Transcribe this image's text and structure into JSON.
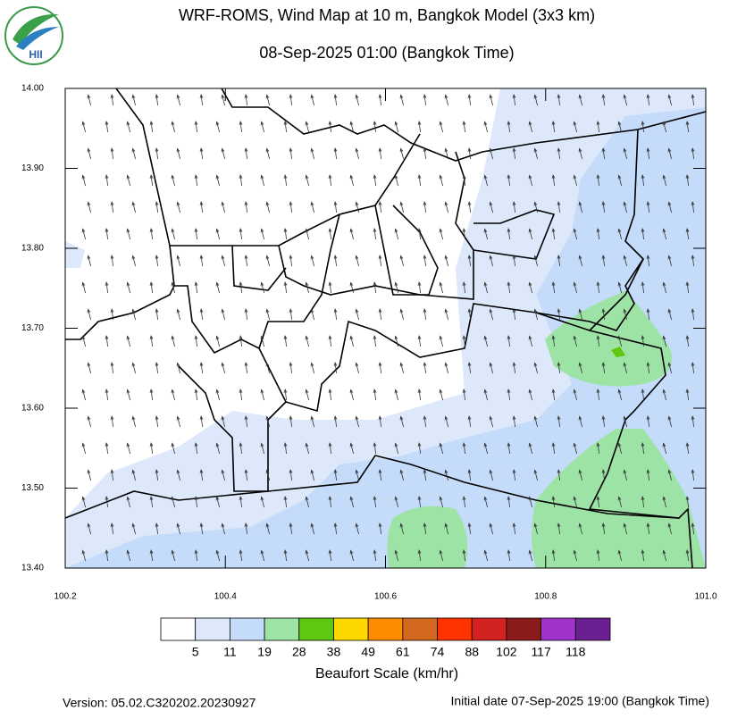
{
  "logo": {
    "text": "HII"
  },
  "map": {
    "title": "WRF-ROMS, Wind Map at 10 m, Bangkok Model (3x3 km)",
    "subtitle": "08-Sep-2025 01:00 (Bangkok Time)",
    "xlim": [
      100.2,
      101.0
    ],
    "ylim": [
      13.4,
      14.0
    ],
    "xticks": [
      100.2,
      100.4,
      100.6,
      100.8,
      {
        "value": 101,
        "label": "101.0"
      }
    ],
    "yticks": [
      {
        "value": 13.4,
        "label": "13.40"
      },
      {
        "value": 13.5,
        "label": "13.50"
      },
      {
        "value": 13.6,
        "label": "13.60"
      },
      {
        "value": 13.7,
        "label": "13.70"
      },
      {
        "value": 13.8,
        "label": "13.80"
      },
      {
        "value": 13.9,
        "label": "13.90"
      },
      {
        "value": 14,
        "label": "14.00"
      }
    ]
  },
  "colorbar": {
    "title": "Beaufort Scale (km/hr)",
    "labels": [
      5,
      11,
      19,
      28,
      38,
      49,
      61,
      74,
      88,
      102,
      117,
      118
    ],
    "colors": [
      "#ffffff",
      "#dde9fb",
      "#c4dbfa",
      "#9ee3a6",
      "#5ec70f",
      "#ffd700",
      "#ff8c00",
      "#d2691e",
      "#ff3300",
      "#d22222",
      "#8b1a1a",
      "#a033cc",
      "#6a2090"
    ]
  },
  "footer": {
    "version": "Version: 05.02.C320202.20230927",
    "initial": "Initial date 07-Sep-2025 19:00 (Bangkok Time)"
  }
}
